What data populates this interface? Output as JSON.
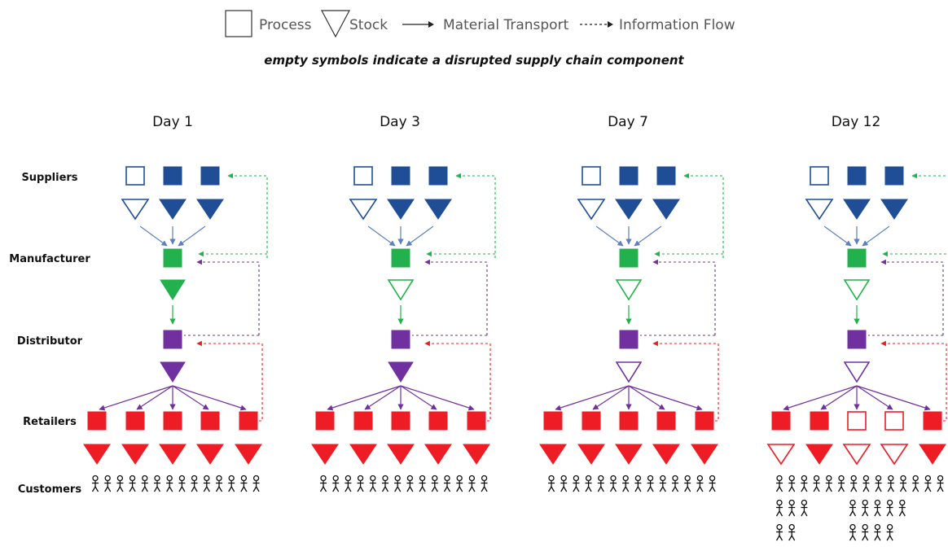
{
  "legend": {
    "process_label": "Process",
    "stock_label": "Stock",
    "material_label": "Material Transport",
    "information_label": "Information Flow",
    "subtitle": "empty symbols indicate a disrupted supply chain component"
  },
  "rows": {
    "suppliers": "Suppliers",
    "manufacturer": "Manufacturer",
    "distributor": "Distributor",
    "retailers": "Retailers",
    "customers": "Customers"
  },
  "colors": {
    "supplier": "#1f4e96",
    "manufacturer": "#22b14c",
    "distributor": "#7030a0",
    "retailer": "#ee1c24",
    "arrow_blue": "#5b7fc1",
    "arrow_green": "#22b14c",
    "arrow_purple": "#7030a0",
    "info_green": "#22b14c",
    "info_purple": "#7030a0",
    "info_red": "#ee1c24"
  },
  "days": [
    {
      "title": "Day 1",
      "supplier_process": [
        false,
        true,
        true
      ],
      "supplier_stock": [
        false,
        true,
        true
      ],
      "manufacturer_stock": true,
      "distributor_stock": true,
      "retailer_process": [
        true,
        true,
        true,
        true,
        true
      ],
      "retailer_stock": [
        true,
        true,
        true,
        true,
        true
      ],
      "customer_rows": [
        14
      ]
    },
    {
      "title": "Day 3",
      "supplier_process": [
        false,
        true,
        true
      ],
      "supplier_stock": [
        false,
        true,
        true
      ],
      "manufacturer_stock": false,
      "distributor_stock": true,
      "retailer_process": [
        true,
        true,
        true,
        true,
        true
      ],
      "retailer_stock": [
        true,
        true,
        true,
        true,
        true
      ],
      "customer_rows": [
        14
      ]
    },
    {
      "title": "Day 7",
      "supplier_process": [
        false,
        true,
        true
      ],
      "supplier_stock": [
        false,
        true,
        true
      ],
      "manufacturer_stock": false,
      "distributor_stock": false,
      "retailer_process": [
        true,
        true,
        true,
        true,
        true
      ],
      "retailer_stock": [
        true,
        true,
        true,
        true,
        true
      ],
      "customer_rows": [
        14
      ]
    },
    {
      "title": "Day 12",
      "supplier_process": [
        false,
        true,
        true
      ],
      "supplier_stock": [
        false,
        true,
        true
      ],
      "manufacturer_stock": false,
      "distributor_stock": false,
      "retailer_process": [
        true,
        true,
        false,
        false,
        true
      ],
      "retailer_stock": [
        false,
        true,
        false,
        false,
        true
      ],
      "customer_rows": [
        14
      ],
      "extra_customer_groups": [
        {
          "anchor": "left",
          "rows": [
            3,
            2
          ]
        },
        {
          "anchor": "mid",
          "rows": [
            5,
            4
          ]
        }
      ]
    }
  ]
}
